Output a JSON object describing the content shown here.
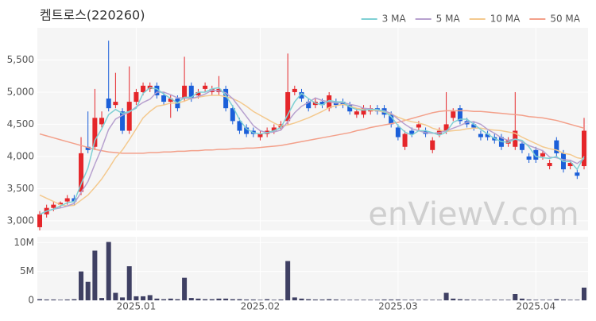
{
  "chart_data": [
    {
      "type": "candlestick",
      "title": "켐트로스(220260)",
      "watermark": "enViewV.com",
      "categories": [
        null,
        null,
        null,
        null,
        null,
        null,
        null,
        null,
        null,
        null,
        null,
        null,
        null,
        null,
        "2025.01",
        null,
        null,
        null,
        null,
        null,
        null,
        null,
        null,
        null,
        null,
        null,
        null,
        null,
        null,
        null,
        null,
        null,
        "2025.02",
        null,
        null,
        null,
        null,
        null,
        null,
        null,
        null,
        null,
        null,
        null,
        null,
        null,
        null,
        null,
        null,
        null,
        null,
        null,
        "2025.03",
        null,
        null,
        null,
        null,
        null,
        null,
        null,
        null,
        null,
        null,
        null,
        null,
        null,
        null,
        null,
        null,
        null,
        null,
        null,
        "2025.04",
        null,
        null,
        null,
        null,
        null,
        null,
        null
      ],
      "open": [
        2900,
        3100,
        3200,
        3250,
        3300,
        3350,
        3450,
        4150,
        4150,
        4500,
        4900,
        4800,
        4700,
        4400,
        4850,
        5000,
        5050,
        5100,
        4950,
        4850,
        4900,
        4900,
        5100,
        4950,
        5050,
        5000,
        5000,
        5050,
        4750,
        4550,
        4450,
        4400,
        4300,
        4350,
        4400,
        4450,
        4550,
        5000,
        5000,
        4850,
        4800,
        4850,
        4750,
        4850,
        4850,
        4800,
        4650,
        4650,
        4700,
        4750,
        4750,
        4650,
        4450,
        4150,
        4400,
        4450,
        4400,
        4100,
        4350,
        4400,
        4600,
        4750,
        4550,
        4500,
        4350,
        4350,
        4300,
        4300,
        4200,
        4150,
        4200,
        4000,
        4100,
        4000,
        3850,
        4250,
        4050,
        3850,
        3750,
        3850
      ],
      "high": [
        3150,
        3250,
        3300,
        3300,
        3400,
        3400,
        4300,
        4700,
        5050,
        4700,
        5800,
        5300,
        4750,
        5400,
        5050,
        5150,
        5150,
        5150,
        5000,
        4950,
        4950,
        5550,
        5150,
        5050,
        5150,
        5100,
        5250,
        5100,
        4800,
        4600,
        4500,
        4450,
        4400,
        4450,
        4500,
        4550,
        5600,
        5100,
        5050,
        4900,
        4900,
        4900,
        5000,
        4900,
        4900,
        4850,
        4750,
        4800,
        4800,
        4800,
        4800,
        4700,
        4500,
        4400,
        4450,
        4550,
        4450,
        4300,
        4450,
        5000,
        4750,
        4800,
        4600,
        4550,
        4400,
        4400,
        4350,
        4350,
        4300,
        5000,
        4250,
        4050,
        4150,
        4100,
        3950,
        4300,
        4100,
        3950,
        3800,
        4600
      ],
      "low": [
        2850,
        3050,
        3150,
        3200,
        3250,
        3250,
        3400,
        4050,
        4100,
        4450,
        4700,
        4750,
        4350,
        4350,
        4800,
        4950,
        5000,
        4900,
        4800,
        4600,
        4700,
        4850,
        4850,
        4900,
        5000,
        4950,
        4950,
        4700,
        4500,
        4350,
        4300,
        4300,
        4250,
        4300,
        4350,
        4400,
        4500,
        4950,
        4850,
        4700,
        4750,
        4750,
        4700,
        4750,
        4750,
        4650,
        4600,
        4600,
        4650,
        4650,
        4600,
        4450,
        4250,
        4100,
        4300,
        4400,
        4300,
        4050,
        4300,
        4350,
        4550,
        4500,
        4450,
        4400,
        4250,
        4250,
        4200,
        4100,
        4150,
        4100,
        4050,
        3900,
        3900,
        3950,
        3800,
        4000,
        3750,
        3800,
        3650,
        3800
      ],
      "close": [
        3100,
        3200,
        3250,
        3280,
        3350,
        3300,
        4050,
        4100,
        4600,
        4600,
        4750,
        4850,
        4400,
        4850,
        5000,
        5100,
        5100,
        4950,
        4850,
        4900,
        4750,
        5100,
        4900,
        5000,
        5100,
        5050,
        5050,
        4750,
        4550,
        4400,
        4350,
        4350,
        4350,
        4400,
        4450,
        4500,
        5000,
        5050,
        4900,
        4750,
        4850,
        4800,
        4950,
        4800,
        4800,
        4700,
        4700,
        4750,
        4750,
        4700,
        4650,
        4500,
        4300,
        4350,
        4350,
        4500,
        4350,
        4250,
        4400,
        4500,
        4700,
        4550,
        4500,
        4450,
        4300,
        4300,
        4250,
        4150,
        4250,
        4400,
        4100,
        3950,
        3950,
        4050,
        3900,
        4050,
        3800,
        3900,
        3700,
        4400
      ],
      "up_color": "#e5262a",
      "down_color": "#1b5fd9",
      "series": [
        {
          "name": "3 MA",
          "color": "#7fd0d4",
          "values": [
            3100,
            3150,
            3180,
            3230,
            3280,
            3300,
            3570,
            3820,
            4250,
            4430,
            4650,
            4730,
            4670,
            4700,
            4750,
            4980,
            5070,
            5050,
            4970,
            4900,
            4830,
            4920,
            4920,
            5000,
            5000,
            5050,
            5070,
            4950,
            4780,
            4570,
            4430,
            4370,
            4350,
            4370,
            4400,
            4450,
            4650,
            4850,
            4980,
            4900,
            4830,
            4800,
            4870,
            4850,
            4850,
            4770,
            4730,
            4720,
            4730,
            4730,
            4700,
            4620,
            4480,
            4380,
            4330,
            4400,
            4400,
            4370,
            4330,
            4380,
            4530,
            4580,
            4580,
            4500,
            4420,
            4350,
            4280,
            4230,
            4220,
            4270,
            4250,
            4150,
            4000,
            3980,
            3970,
            4000,
            3920,
            3920,
            3800,
            4000
          ]
        },
        {
          "name": "5 MA",
          "color": "#b7a1cf",
          "values": [
            3100,
            3150,
            3180,
            3200,
            3230,
            3270,
            3440,
            3610,
            3880,
            4130,
            4420,
            4580,
            4640,
            4690,
            4770,
            4840,
            4890,
            5000,
            5000,
            4960,
            4910,
            4910,
            4900,
            4930,
            4970,
            5030,
            5020,
            4990,
            4900,
            4760,
            4620,
            4480,
            4400,
            4370,
            4380,
            4410,
            4540,
            4680,
            4780,
            4840,
            4910,
            4870,
            4850,
            4830,
            4840,
            4810,
            4790,
            4750,
            4740,
            4720,
            4710,
            4670,
            4580,
            4500,
            4430,
            4400,
            4370,
            4360,
            4370,
            4400,
            4440,
            4480,
            4530,
            4540,
            4500,
            4420,
            4360,
            4290,
            4250,
            4270,
            4230,
            4170,
            4130,
            4090,
            3990,
            3980,
            3950,
            3940,
            3890,
            3970
          ]
        },
        {
          "name": "10 MA",
          "color": "#f4c98e",
          "values": [
            3400,
            3350,
            3300,
            3250,
            3230,
            3240,
            3320,
            3400,
            3520,
            3650,
            3810,
            3980,
            4100,
            4260,
            4430,
            4600,
            4700,
            4780,
            4800,
            4830,
            4830,
            4860,
            4900,
            4920,
            4940,
            4950,
            4950,
            4930,
            4900,
            4850,
            4780,
            4700,
            4640,
            4580,
            4520,
            4470,
            4490,
            4520,
            4560,
            4600,
            4650,
            4700,
            4760,
            4790,
            4810,
            4780,
            4750,
            4730,
            4720,
            4710,
            4690,
            4660,
            4610,
            4570,
            4540,
            4520,
            4490,
            4440,
            4410,
            4390,
            4400,
            4410,
            4430,
            4440,
            4440,
            4420,
            4410,
            4400,
            4380,
            4360,
            4300,
            4250,
            4200,
            4150,
            4120,
            4100,
            4050,
            4030,
            3980,
            3960
          ]
        },
        {
          "name": "50 MA",
          "color": "#f3a08a",
          "values": [
            4350,
            4320,
            4290,
            4260,
            4230,
            4200,
            4170,
            4140,
            4110,
            4090,
            4070,
            4060,
            4050,
            4050,
            4050,
            4050,
            4060,
            4060,
            4070,
            4070,
            4080,
            4080,
            4090,
            4090,
            4100,
            4100,
            4110,
            4110,
            4120,
            4120,
            4130,
            4130,
            4140,
            4150,
            4160,
            4170,
            4190,
            4210,
            4230,
            4250,
            4270,
            4290,
            4310,
            4330,
            4350,
            4370,
            4400,
            4420,
            4450,
            4470,
            4490,
            4510,
            4530,
            4560,
            4590,
            4620,
            4650,
            4680,
            4700,
            4710,
            4710,
            4710,
            4710,
            4700,
            4700,
            4690,
            4680,
            4670,
            4660,
            4650,
            4640,
            4620,
            4610,
            4600,
            4580,
            4560,
            4530,
            4500,
            4470,
            4440
          ]
        }
      ],
      "ylim": [
        2850,
        6000
      ],
      "yticks": [
        {
          "value": 3000,
          "label": "3,000"
        },
        {
          "value": 3500,
          "label": "3,500"
        },
        {
          "value": 4000,
          "label": "4,000"
        },
        {
          "value": 4500,
          "label": "4,500"
        },
        {
          "value": 5000,
          "label": "5,000"
        },
        {
          "value": 5500,
          "label": "5,500"
        }
      ],
      "grid": true,
      "legend": "top-right"
    },
    {
      "type": "bar",
      "color": "#3f4063",
      "values": [
        200000,
        150000,
        150000,
        100000,
        150000,
        200000,
        5000000,
        3200000,
        8600000,
        400000,
        10100000,
        1300000,
        500000,
        5900000,
        700000,
        700000,
        900000,
        300000,
        200000,
        300000,
        200000,
        3900000,
        400000,
        300000,
        200000,
        200000,
        300000,
        300000,
        200000,
        200000,
        150000,
        150000,
        100000,
        200000,
        100000,
        150000,
        6800000,
        500000,
        300000,
        200000,
        150000,
        150000,
        200000,
        150000,
        100000,
        100000,
        100000,
        100000,
        100000,
        100000,
        150000,
        150000,
        150000,
        100000,
        100000,
        100000,
        100000,
        100000,
        100000,
        1300000,
        300000,
        200000,
        150000,
        100000,
        100000,
        100000,
        100000,
        100000,
        100000,
        1100000,
        300000,
        150000,
        100000,
        100000,
        100000,
        200000,
        150000,
        100000,
        100000,
        2200000
      ],
      "ylim": [
        0,
        11000000
      ],
      "yticks": [
        0,
        {
          "value": 5000000,
          "label": "5M"
        },
        {
          "value": 10000000,
          "label": "10M"
        }
      ],
      "grid": true
    }
  ]
}
